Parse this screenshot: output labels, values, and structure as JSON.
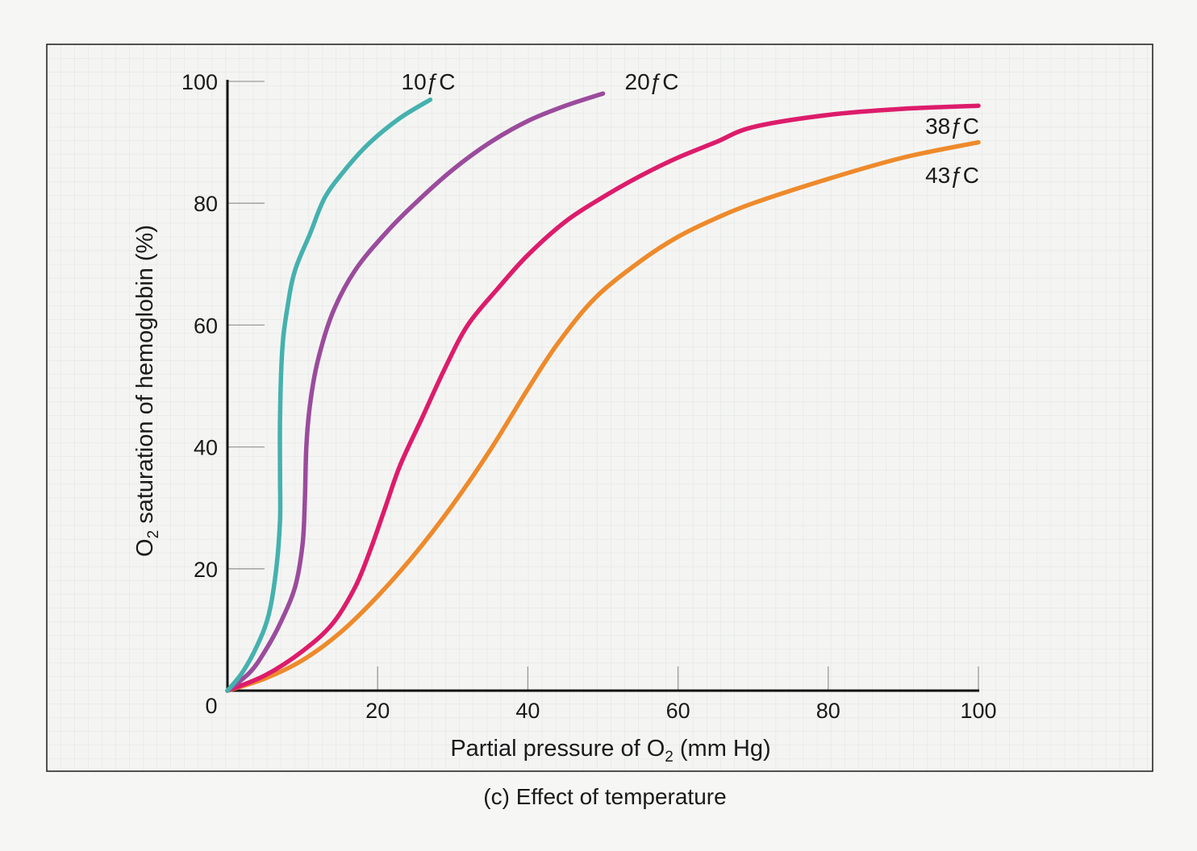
{
  "caption": "(c) Effect of temperature",
  "chart_data": {
    "type": "line",
    "title": "",
    "xlabel": {
      "prefix": "Partial pressure of O",
      "sub": "2",
      "suffix": " (mm Hg)"
    },
    "ylabel": {
      "prefix": "O",
      "sub": "2",
      "suffix": " saturation of hemoglobin (%)"
    },
    "xlim": [
      0,
      100
    ],
    "ylim": [
      0,
      100
    ],
    "x_ticks": [
      20,
      40,
      60,
      80,
      100
    ],
    "y_ticks": [
      20,
      40,
      60,
      80,
      100
    ],
    "origin_label": "0",
    "grid": true,
    "legend": "inline-labels",
    "series": [
      {
        "name": "10ƒC",
        "color": "#45b1ae",
        "points": [
          [
            0,
            0
          ],
          [
            2,
            3
          ],
          [
            4,
            7.5
          ],
          [
            5.5,
            12.5
          ],
          [
            6.5,
            20
          ],
          [
            7,
            28
          ],
          [
            7,
            35
          ],
          [
            7,
            45
          ],
          [
            7.3,
            56
          ],
          [
            8,
            63
          ],
          [
            9,
            69
          ],
          [
            11,
            75
          ],
          [
            13,
            81
          ],
          [
            16,
            86
          ],
          [
            19,
            90
          ],
          [
            23,
            94
          ],
          [
            27,
            97
          ]
        ]
      },
      {
        "name": "20ƒC",
        "color": "#9b4b9c",
        "points": [
          [
            0,
            0
          ],
          [
            3,
            3
          ],
          [
            5,
            6.5
          ],
          [
            7,
            11
          ],
          [
            9,
            17
          ],
          [
            10,
            24
          ],
          [
            10.3,
            31
          ],
          [
            10.5,
            40
          ],
          [
            11,
            47
          ],
          [
            12,
            54
          ],
          [
            14,
            62
          ],
          [
            17,
            69
          ],
          [
            21,
            75
          ],
          [
            25,
            80
          ],
          [
            30,
            85.5
          ],
          [
            35,
            90
          ],
          [
            40,
            93.5
          ],
          [
            45,
            96
          ],
          [
            50,
            98
          ]
        ]
      },
      {
        "name": "38ƒC",
        "color": "#dd1c6b",
        "points": [
          [
            0,
            0
          ],
          [
            5,
            2.5
          ],
          [
            10,
            6.5
          ],
          [
            14,
            11
          ],
          [
            17,
            17
          ],
          [
            19,
            23
          ],
          [
            21,
            30
          ],
          [
            23,
            37
          ],
          [
            26,
            45
          ],
          [
            29,
            53
          ],
          [
            32,
            60
          ],
          [
            36,
            66
          ],
          [
            40,
            71.5
          ],
          [
            45,
            77
          ],
          [
            50,
            81
          ],
          [
            55,
            84.5
          ],
          [
            60,
            87.5
          ],
          [
            65,
            90
          ],
          [
            70,
            92.5
          ],
          [
            80,
            94.5
          ],
          [
            90,
            95.5
          ],
          [
            100,
            96
          ]
        ]
      },
      {
        "name": "43ƒC",
        "color": "#ee8a2b",
        "points": [
          [
            0,
            0
          ],
          [
            5,
            2
          ],
          [
            10,
            5
          ],
          [
            15,
            9.5
          ],
          [
            20,
            15.5
          ],
          [
            25,
            22.5
          ],
          [
            30,
            30.5
          ],
          [
            35,
            39.5
          ],
          [
            40,
            49.5
          ],
          [
            44,
            57
          ],
          [
            49,
            64.5
          ],
          [
            55,
            70.5
          ],
          [
            60,
            74.5
          ],
          [
            65,
            77.5
          ],
          [
            70,
            80
          ],
          [
            80,
            84
          ],
          [
            90,
            87.5
          ],
          [
            100,
            90
          ]
        ]
      }
    ]
  }
}
